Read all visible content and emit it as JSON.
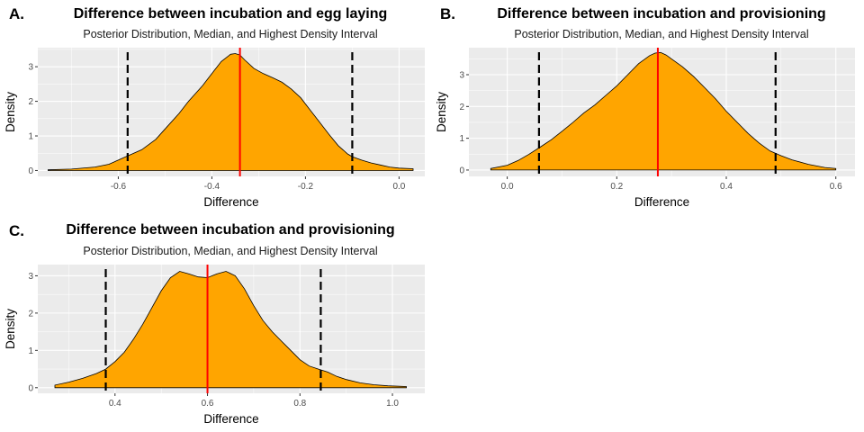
{
  "colors": {
    "panel_bg": "#ebebeb",
    "grid": "#ffffff",
    "fill": "#ffa500",
    "median": "#ff0000",
    "hdi": "#000000",
    "tick_text": "#4d4d4d"
  },
  "chart_data": [
    {
      "type": "area",
      "letter": "A.",
      "title": "Difference between incubation and egg laying",
      "subtitle": "Posterior Distribution, Median, and Highest Density Interval",
      "xlabel": "Difference",
      "ylabel": "Density",
      "xlim": [
        -0.772,
        0.055
      ],
      "ylim": [
        -0.17,
        3.55
      ],
      "xticks": [
        -0.6,
        -0.4,
        -0.2,
        0.0
      ],
      "xtick_labels": [
        "-0.6",
        "-0.4",
        "-0.2",
        "0.0"
      ],
      "yticks": [
        0,
        1,
        2,
        3
      ],
      "ytick_labels": [
        "0",
        "1",
        "2",
        "3"
      ],
      "median": -0.34,
      "hdi": [
        -0.58,
        -0.1
      ],
      "x": [
        -0.75,
        -0.7,
        -0.65,
        -0.62,
        -0.6,
        -0.58,
        -0.55,
        -0.52,
        -0.5,
        -0.47,
        -0.45,
        -0.42,
        -0.4,
        -0.38,
        -0.36,
        -0.35,
        -0.34,
        -0.33,
        -0.31,
        -0.29,
        -0.27,
        -0.25,
        -0.23,
        -0.21,
        -0.19,
        -0.17,
        -0.15,
        -0.13,
        -0.11,
        -0.1,
        -0.08,
        -0.06,
        -0.04,
        -0.02,
        0.0,
        0.03
      ],
      "y": [
        0.02,
        0.04,
        0.1,
        0.18,
        0.3,
        0.42,
        0.6,
        0.9,
        1.2,
        1.65,
        2.0,
        2.45,
        2.8,
        3.15,
        3.36,
        3.38,
        3.34,
        3.2,
        2.95,
        2.8,
        2.68,
        2.55,
        2.35,
        2.1,
        1.75,
        1.4,
        1.05,
        0.72,
        0.48,
        0.4,
        0.3,
        0.22,
        0.16,
        0.1,
        0.07,
        0.05
      ]
    },
    {
      "type": "area",
      "letter": "B.",
      "title": "Difference between incubation and provisioning",
      "subtitle": "Posterior Distribution, Median, and Highest Density Interval",
      "xlabel": "Difference",
      "ylabel": "Density",
      "xlim": [
        -0.07,
        0.635
      ],
      "ylim": [
        -0.2,
        3.85
      ],
      "xticks": [
        0.0,
        0.2,
        0.4,
        0.6
      ],
      "xtick_labels": [
        "0.0",
        "0.2",
        "0.4",
        "0.6"
      ],
      "yticks": [
        0,
        1,
        2,
        3
      ],
      "ytick_labels": [
        "0",
        "1",
        "2",
        "3"
      ],
      "median": 0.275,
      "hdi": [
        0.058,
        0.49
      ],
      "x": [
        -0.03,
        0.0,
        0.02,
        0.04,
        0.06,
        0.08,
        0.1,
        0.12,
        0.14,
        0.16,
        0.18,
        0.2,
        0.22,
        0.24,
        0.26,
        0.27,
        0.28,
        0.29,
        0.3,
        0.32,
        0.34,
        0.36,
        0.38,
        0.4,
        0.42,
        0.44,
        0.46,
        0.48,
        0.5,
        0.52,
        0.55,
        0.58,
        0.6
      ],
      "y": [
        0.05,
        0.15,
        0.3,
        0.5,
        0.72,
        0.95,
        1.22,
        1.5,
        1.8,
        2.05,
        2.35,
        2.65,
        3.0,
        3.35,
        3.6,
        3.68,
        3.7,
        3.62,
        3.5,
        3.25,
        2.95,
        2.6,
        2.25,
        1.85,
        1.5,
        1.15,
        0.85,
        0.6,
        0.45,
        0.32,
        0.18,
        0.08,
        0.05
      ]
    },
    {
      "type": "area",
      "letter": "C.",
      "title": "Difference between incubation and provisioning",
      "subtitle": "Posterior Distribution, Median, and Highest Density Interval",
      "xlabel": "Difference",
      "ylabel": "Density",
      "xlim": [
        0.233,
        1.07
      ],
      "ylim": [
        -0.15,
        3.3
      ],
      "xticks": [
        0.4,
        0.6,
        0.8,
        1.0
      ],
      "xtick_labels": [
        "0.4",
        "0.6",
        "0.8",
        "1.0"
      ],
      "yticks": [
        0,
        1,
        2,
        3
      ],
      "ytick_labels": [
        "0",
        "1",
        "2",
        "3"
      ],
      "median": 0.6,
      "hdi": [
        0.38,
        0.845
      ],
      "x": [
        0.27,
        0.3,
        0.33,
        0.36,
        0.38,
        0.4,
        0.42,
        0.44,
        0.46,
        0.48,
        0.5,
        0.52,
        0.54,
        0.56,
        0.58,
        0.6,
        0.62,
        0.64,
        0.66,
        0.68,
        0.7,
        0.72,
        0.74,
        0.76,
        0.78,
        0.8,
        0.82,
        0.84,
        0.86,
        0.88,
        0.9,
        0.93,
        0.96,
        0.99,
        1.03
      ],
      "y": [
        0.07,
        0.15,
        0.25,
        0.38,
        0.5,
        0.7,
        0.95,
        1.3,
        1.7,
        2.15,
        2.6,
        2.95,
        3.12,
        3.05,
        2.97,
        2.95,
        3.05,
        3.12,
        3.0,
        2.65,
        2.2,
        1.8,
        1.5,
        1.25,
        1.0,
        0.75,
        0.58,
        0.5,
        0.42,
        0.3,
        0.22,
        0.13,
        0.08,
        0.05,
        0.03
      ]
    }
  ]
}
